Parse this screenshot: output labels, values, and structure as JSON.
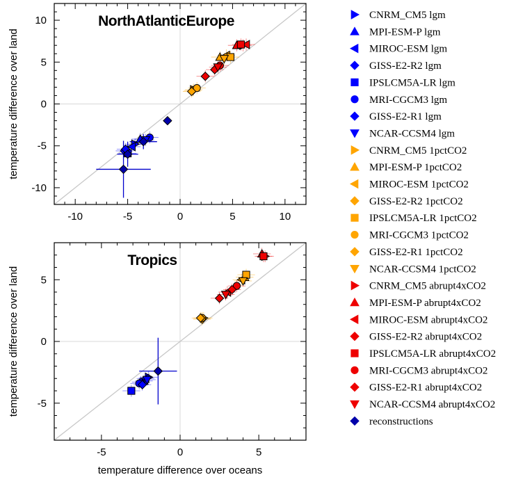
{
  "chart_data": [
    {
      "type": "scatter",
      "title": "NorthAtlanticEurope",
      "xlabel": "",
      "ylabel": "temperature difference over land",
      "xlim": [
        -12,
        12
      ],
      "ylim": [
        -12,
        12
      ],
      "xticks": [
        -10,
        -5,
        0,
        5,
        10
      ],
      "yticks": [
        -10,
        -5,
        0,
        5,
        10
      ],
      "reference_line": "1:1 diagonal",
      "grid": "zero lines only",
      "points": [
        {
          "series": "CNRM_CM5 lgm",
          "x": -4.3,
          "y": -4.8
        },
        {
          "series": "MPI-ESM-P lgm",
          "x": -3.8,
          "y": -4.2
        },
        {
          "series": "MIROC-ESM lgm",
          "x": -4.6,
          "y": -5.1
        },
        {
          "series": "GISS-E2-R2 lgm",
          "x": -5.3,
          "y": -5.6
        },
        {
          "series": "IPSLCM5A-LR lgm",
          "x": -5.0,
          "y": -5.9
        },
        {
          "series": "MRI-CGCM3 lgm",
          "x": -2.9,
          "y": -4.0
        },
        {
          "series": "GISS-E2-R1 lgm",
          "x": -5.2,
          "y": -5.4
        },
        {
          "series": "NCAR-CCSM4 lgm",
          "x": -3.3,
          "y": -4.3
        },
        {
          "series": "reconstructions",
          "x": -1.2,
          "y": -2.0,
          "xerr": 0.4,
          "yerr": 0.4
        },
        {
          "series": "reconstructions",
          "x": -5.4,
          "y": -7.8,
          "xerr": 2.6,
          "yerr": 3.4
        },
        {
          "series": "reconstructions",
          "x": -3.5,
          "y": -4.5,
          "xerr": 1.3,
          "yerr": 0.9
        },
        {
          "series": "reconstructions",
          "x": -5.0,
          "y": -6.0,
          "xerr": 1.0,
          "yerr": 1.5
        },
        {
          "series": "CNRM_CM5 1pctCO2",
          "x": 1.3,
          "y": 1.7
        },
        {
          "series": "MPI-ESM-P 1pctCO2",
          "x": 3.8,
          "y": 5.6
        },
        {
          "series": "MIROC-ESM 1pctCO2",
          "x": 4.4,
          "y": 5.8
        },
        {
          "series": "GISS-E2-R2 1pctCO2",
          "x": 1.2,
          "y": 1.6
        },
        {
          "series": "IPSLCM5A-LR 1pctCO2",
          "x": 4.8,
          "y": 5.6
        },
        {
          "series": "MRI-CGCM3 1pctCO2",
          "x": 1.6,
          "y": 1.9
        },
        {
          "series": "GISS-E2-R1 1pctCO2",
          "x": 1.1,
          "y": 1.5
        },
        {
          "series": "NCAR-CCSM4 1pctCO2",
          "x": 4.2,
          "y": 5.4
        },
        {
          "series": "CNRM_CM5 abrupt4xCO2",
          "x": 6.0,
          "y": 7.0
        },
        {
          "series": "MPI-ESM-P abrupt4xCO2",
          "x": 5.4,
          "y": 7.0
        },
        {
          "series": "MIROC-ESM abrupt4xCO2",
          "x": 6.3,
          "y": 7.1
        },
        {
          "series": "GISS-E2-R2 abrupt4xCO2",
          "x": 2.4,
          "y": 3.3
        },
        {
          "series": "IPSLCM5A-LR abrupt4xCO2",
          "x": 5.8,
          "y": 7.1
        },
        {
          "series": "MRI-CGCM3 abrupt4xCO2",
          "x": 3.8,
          "y": 4.6
        },
        {
          "series": "GISS-E2-R1 abrupt4xCO2",
          "x": 3.3,
          "y": 4.1
        },
        {
          "series": "NCAR-CCSM4 abrupt4xCO2",
          "x": 3.6,
          "y": 4.4
        }
      ]
    },
    {
      "type": "scatter",
      "title": "Tropics",
      "xlabel": "temperature difference over oceans",
      "ylabel": "temperature difference over land",
      "xlim": [
        -8,
        8
      ],
      "ylim": [
        -8,
        8
      ],
      "xticks": [
        -5,
        0,
        5
      ],
      "yticks": [
        -5,
        0,
        5
      ],
      "reference_line": "1:1 diagonal",
      "grid": "zero lines only",
      "points": [
        {
          "series": "CNRM_CM5 lgm",
          "x": -2.0,
          "y": -2.9
        },
        {
          "series": "MPI-ESM-P lgm",
          "x": -2.3,
          "y": -3.2
        },
        {
          "series": "MIROC-ESM lgm",
          "x": -2.2,
          "y": -3.0
        },
        {
          "series": "GISS-E2-R2 lgm",
          "x": -2.5,
          "y": -3.3
        },
        {
          "series": "IPSLCM5A-LR lgm",
          "x": -3.1,
          "y": -4.0
        },
        {
          "series": "MRI-CGCM3 lgm",
          "x": -2.6,
          "y": -3.4
        },
        {
          "series": "GISS-E2-R1 lgm",
          "x": -2.4,
          "y": -3.5
        },
        {
          "series": "NCAR-CCSM4 lgm",
          "x": -2.1,
          "y": -3.1
        },
        {
          "series": "reconstructions",
          "x": -1.4,
          "y": -2.4,
          "xerr": 1.2,
          "yerr": 2.7
        },
        {
          "series": "CNRM_CM5 1pctCO2",
          "x": 1.5,
          "y": 1.9
        },
        {
          "series": "MPI-ESM-P 1pctCO2",
          "x": 4.1,
          "y": 5.2
        },
        {
          "series": "MIROC-ESM 1pctCO2",
          "x": 3.9,
          "y": 5.0
        },
        {
          "series": "GISS-E2-R2 1pctCO2",
          "x": 1.4,
          "y": 1.8
        },
        {
          "series": "IPSLCM5A-LR 1pctCO2",
          "x": 4.2,
          "y": 5.4
        },
        {
          "series": "MRI-CGCM3 1pctCO2",
          "x": 1.4,
          "y": 1.9
        },
        {
          "series": "GISS-E2-R1 1pctCO2",
          "x": 1.3,
          "y": 1.9
        },
        {
          "series": "NCAR-CCSM4 1pctCO2",
          "x": 4.0,
          "y": 4.9
        },
        {
          "series": "CNRM_CM5 abrupt4xCO2",
          "x": 5.4,
          "y": 6.9
        },
        {
          "series": "MPI-ESM-P abrupt4xCO2",
          "x": 5.2,
          "y": 7.1
        },
        {
          "series": "MIROC-ESM abrupt4xCO2",
          "x": 3.0,
          "y": 4.0
        },
        {
          "series": "GISS-E2-R2 abrupt4xCO2",
          "x": 2.5,
          "y": 3.5
        },
        {
          "series": "IPSLCM5A-LR abrupt4xCO2",
          "x": 5.3,
          "y": 6.9
        },
        {
          "series": "MRI-CGCM3 abrupt4xCO2",
          "x": 3.6,
          "y": 4.5
        },
        {
          "series": "GISS-E2-R1 abrupt4xCO2",
          "x": 3.3,
          "y": 4.2
        },
        {
          "series": "NCAR-CCSM4 abrupt4xCO2",
          "x": 2.9,
          "y": 3.8
        }
      ]
    }
  ],
  "legend": {
    "placement": "right",
    "entries": [
      {
        "label": "CNRM_CM5 lgm",
        "marker": "triangle-right",
        "color": "#0000ff"
      },
      {
        "label": "MPI-ESM-P lgm",
        "marker": "triangle-up",
        "color": "#0000ff"
      },
      {
        "label": "MIROC-ESM lgm",
        "marker": "triangle-left",
        "color": "#0000ff"
      },
      {
        "label": "GISS-E2-R2 lgm",
        "marker": "diamond",
        "color": "#0000ff"
      },
      {
        "label": "IPSLCM5A-LR lgm",
        "marker": "square",
        "color": "#0000ff"
      },
      {
        "label": "MRI-CGCM3 lgm",
        "marker": "circle",
        "color": "#0000ff"
      },
      {
        "label": "GISS-E2-R1 lgm",
        "marker": "diamond",
        "color": "#0000ff"
      },
      {
        "label": "NCAR-CCSM4 lgm",
        "marker": "triangle-down",
        "color": "#0000ff"
      },
      {
        "label": "CNRM_CM5 1pctCO2",
        "marker": "triangle-right",
        "color": "#ffa500"
      },
      {
        "label": "MPI-ESM-P 1pctCO2",
        "marker": "triangle-up",
        "color": "#ffa500"
      },
      {
        "label": "MIROC-ESM 1pctCO2",
        "marker": "triangle-left",
        "color": "#ffa500"
      },
      {
        "label": "GISS-E2-R2 1pctCO2",
        "marker": "diamond",
        "color": "#ffa500"
      },
      {
        "label": "IPSLCM5A-LR 1pctCO2",
        "marker": "square",
        "color": "#ffa500"
      },
      {
        "label": "MRI-CGCM3 1pctCO2",
        "marker": "circle",
        "color": "#ffa500"
      },
      {
        "label": "GISS-E2-R1 1pctCO2",
        "marker": "diamond",
        "color": "#ffa500"
      },
      {
        "label": "NCAR-CCSM4 1pctCO2",
        "marker": "triangle-down",
        "color": "#ffa500"
      },
      {
        "label": "CNRM_CM5 abrupt4xCO2",
        "marker": "triangle-right",
        "color": "#ee0000"
      },
      {
        "label": "MPI-ESM-P abrupt4xCO2",
        "marker": "triangle-up",
        "color": "#ee0000"
      },
      {
        "label": "MIROC-ESM abrupt4xCO2",
        "marker": "triangle-left",
        "color": "#ee0000"
      },
      {
        "label": "GISS-E2-R2 abrupt4xCO2",
        "marker": "diamond",
        "color": "#ee0000"
      },
      {
        "label": "IPSLCM5A-LR abrupt4xCO2",
        "marker": "square",
        "color": "#ee0000"
      },
      {
        "label": "MRI-CGCM3 abrupt4xCO2",
        "marker": "circle",
        "color": "#ee0000"
      },
      {
        "label": "GISS-E2-R1 abrupt4xCO2",
        "marker": "diamond",
        "color": "#ee0000"
      },
      {
        "label": "NCAR-CCSM4 abrupt4xCO2",
        "marker": "triangle-down",
        "color": "#ee0000"
      },
      {
        "label": "reconstructions",
        "marker": "diamond",
        "color": "#0000aa"
      }
    ]
  }
}
